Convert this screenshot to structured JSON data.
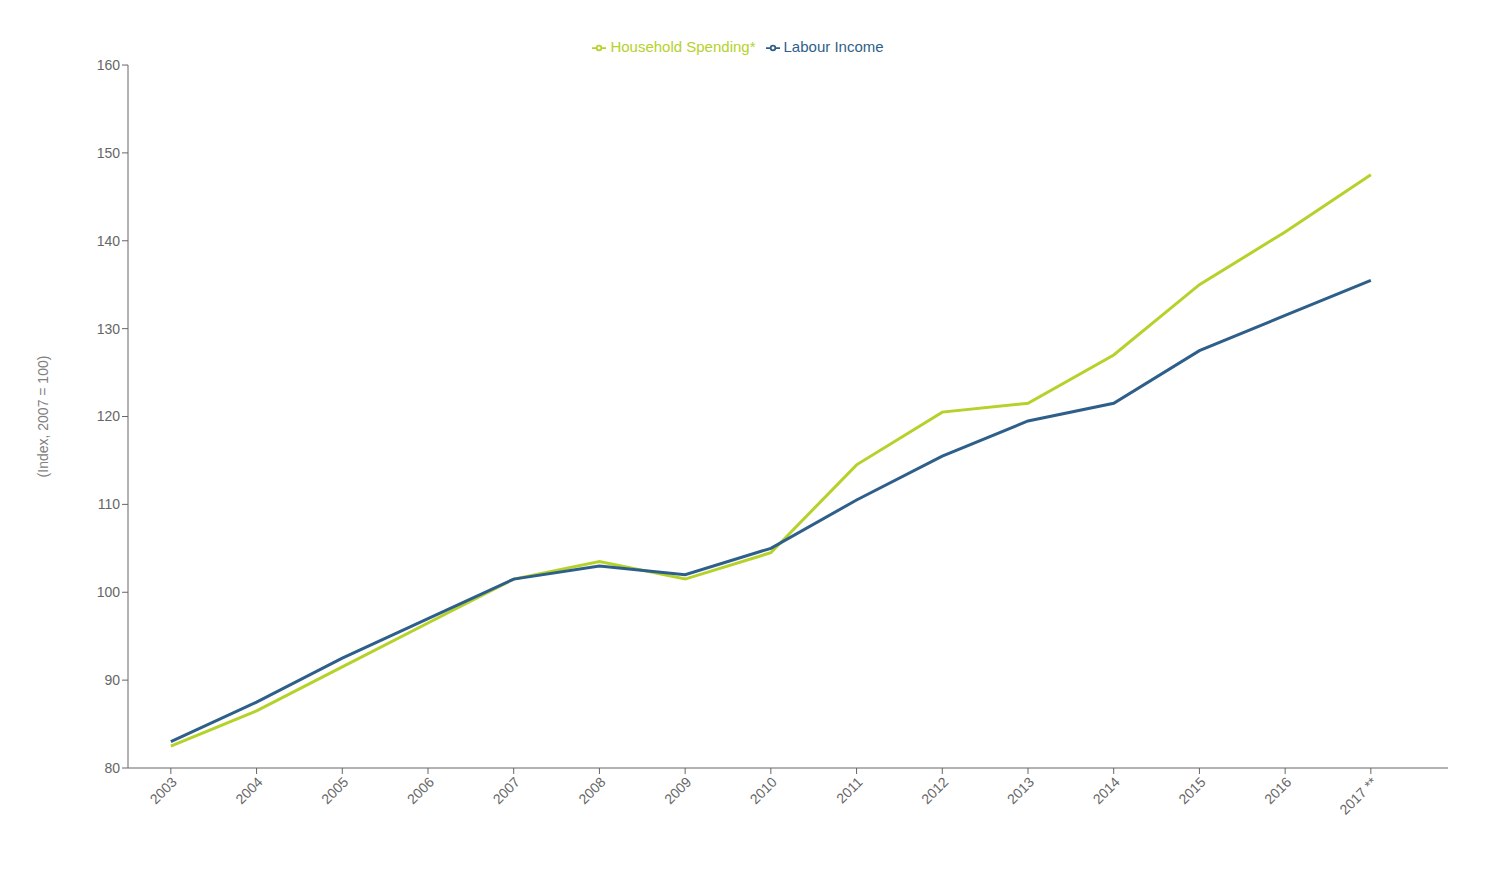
{
  "chart_data": {
    "type": "line",
    "x": [
      2003,
      2004,
      2005,
      2006,
      2007,
      2008,
      2009,
      2010,
      2011,
      2012,
      2013,
      2014,
      2015,
      2016,
      2017
    ],
    "series": [
      {
        "name": "Household Spending*",
        "color": "#b5d22b",
        "values": [
          82.5,
          86.5,
          91.5,
          96.5,
          101.5,
          103.5,
          101.5,
          104.5,
          114.5,
          120.5,
          121.5,
          127.0,
          135.0,
          141.0,
          147.5
        ]
      },
      {
        "name": "Labour Income",
        "color": "#2e5f8a",
        "values": [
          83.0,
          87.5,
          92.5,
          97.0,
          101.5,
          103.0,
          102.0,
          105.0,
          110.5,
          115.5,
          119.5,
          121.5,
          127.5,
          131.5,
          135.5
        ]
      }
    ],
    "ylabel": "(Index, 2007 = 100)",
    "xlim": [
      2002.5,
      2017.9
    ],
    "ylim": [
      80,
      160
    ],
    "xticks": [
      2003,
      2004,
      2005,
      2006,
      2007,
      2008,
      2009,
      2010,
      2011,
      2012,
      2013,
      2014,
      2015,
      2016,
      {
        "value": 2017,
        "label": "2017 **"
      }
    ],
    "yticks": [
      80,
      90,
      100,
      110,
      120,
      130,
      140,
      150,
      160
    ],
    "grid": false,
    "legend": "top"
  }
}
